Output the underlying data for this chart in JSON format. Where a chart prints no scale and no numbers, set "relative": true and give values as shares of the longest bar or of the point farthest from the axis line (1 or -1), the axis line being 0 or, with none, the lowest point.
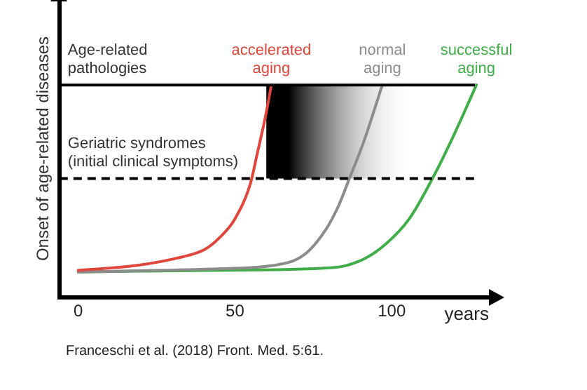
{
  "chart_data": {
    "type": "line",
    "relative": true,
    "xlabel": "years",
    "ylabel": "Onset of age-related diseases",
    "xlim": [
      -6,
      131
    ],
    "xticks": [
      0,
      50,
      100
    ],
    "grid": false,
    "legend": false,
    "marker": "none",
    "line_style": "solid",
    "series": [
      {
        "name": "accelerated aging",
        "color": "#e0463c",
        "x": [
          0,
          18.5,
          33,
          40.3,
          45,
          50,
          55,
          57,
          59.7,
          61.6
        ],
        "values": [
          0.127,
          0.15,
          0.19,
          0.225,
          0.28,
          0.37,
          0.54,
          0.67,
          0.85,
          1.0
        ]
      },
      {
        "name": "normal aging",
        "color": "#8c8c8c",
        "x": [
          0,
          42.7,
          62,
          72,
          79,
          83,
          86.5,
          91,
          97
        ],
        "values": [
          0.12,
          0.134,
          0.15,
          0.2,
          0.32,
          0.43,
          0.56,
          0.73,
          1.0
        ]
      },
      {
        "name": "successful aging",
        "color": "#3fae49",
        "x": [
          0,
          42.7,
          81.4,
          91,
          98,
          105.6,
          113,
          120,
          127
        ],
        "values": [
          0.12,
          0.127,
          0.14,
          0.18,
          0.25,
          0.37,
          0.56,
          0.77,
          1.0
        ]
      }
    ],
    "ref_lines": [
      {
        "axis": "y",
        "value": 1,
        "label": "Age-related pathologies",
        "color": "#000000",
        "line_style": "solid"
      },
      {
        "axis": "y",
        "value": 0.56,
        "label": "Geriatric syndromes (initial clinical symptoms)",
        "color": "#000000",
        "line_style": "dashed"
      }
    ],
    "bands": [
      {
        "axis": "x",
        "from": 60,
        "to": 107,
        "color": "#000000"
      }
    ],
    "annotations": [
      "Franceschi et al. (2018) Front. Med. 5:61."
    ]
  }
}
